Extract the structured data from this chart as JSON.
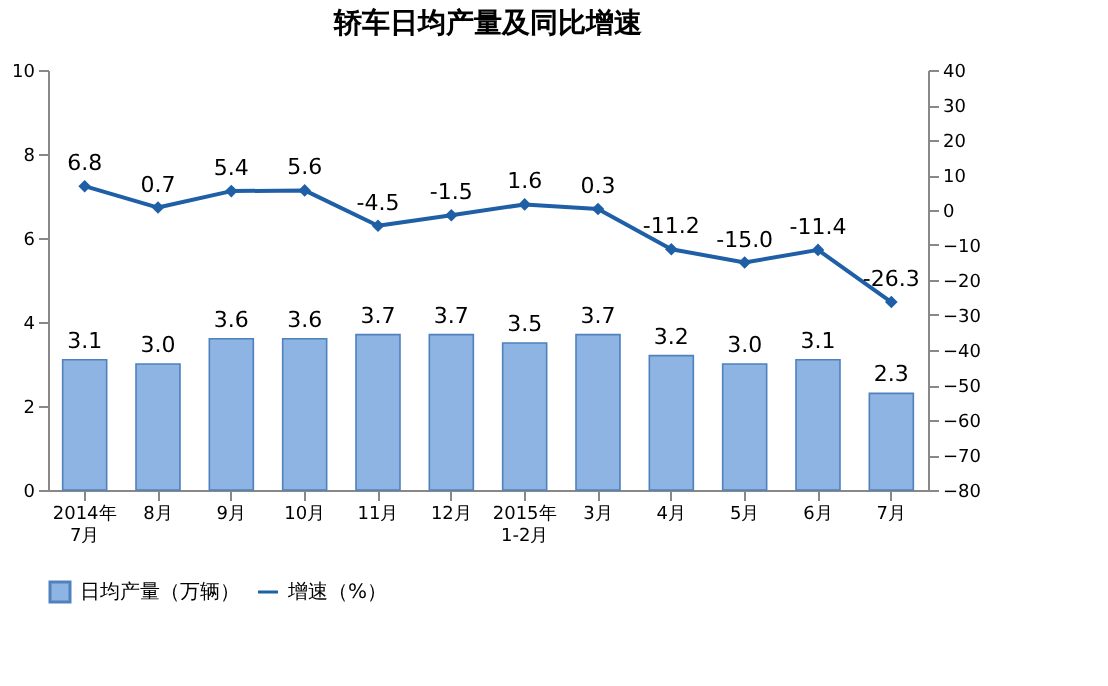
{
  "chart_data": {
    "type": "bar",
    "title": "轿车日均产量及同比增速",
    "categories": [
      "2014年\n7月",
      "8月",
      "9月",
      "10月",
      "11月",
      "12月",
      "2015年\n1-2月",
      "3月",
      "4月",
      "5月",
      "6月",
      "7月"
    ],
    "series": [
      {
        "name": "日均产量（万辆）",
        "color": "#8db4e2",
        "values": [
          3.1,
          3.0,
          3.6,
          3.6,
          3.7,
          3.7,
          3.5,
          3.7,
          3.2,
          3.0,
          3.1,
          2.3
        ],
        "value_labels": [
          "3.1",
          "3.0",
          "3.6",
          "3.6",
          "3.7",
          "3.7",
          "3.5",
          "3.7",
          "3.2",
          "3.0",
          "3.1",
          "2.3"
        ]
      },
      {
        "name": "增速（%）",
        "type": "line",
        "axis": "y2",
        "color": "#1f5fa6",
        "values": [
          6.8,
          0.7,
          5.4,
          5.6,
          -4.5,
          -1.5,
          1.6,
          0.3,
          -11.2,
          -15.0,
          -11.4,
          -26.3
        ],
        "value_labels": [
          "6.8",
          "0.7",
          "5.4",
          "5.6",
          "-4.5",
          "-1.5",
          "1.6",
          "0.3",
          "-11.2",
          "-15.0",
          "-11.4",
          "-26.3"
        ]
      }
    ],
    "ylim": [
      0,
      10
    ],
    "yticks": [
      0,
      2,
      4,
      6,
      8,
      10
    ],
    "y2lim": [
      -80,
      40
    ],
    "y2ticks": [
      -80,
      -70,
      -60,
      -50,
      -40,
      -30,
      -20,
      -10,
      0,
      10,
      20,
      30,
      40
    ],
    "legend": "bottom",
    "marker": "diamond",
    "line_style": "solid"
  }
}
